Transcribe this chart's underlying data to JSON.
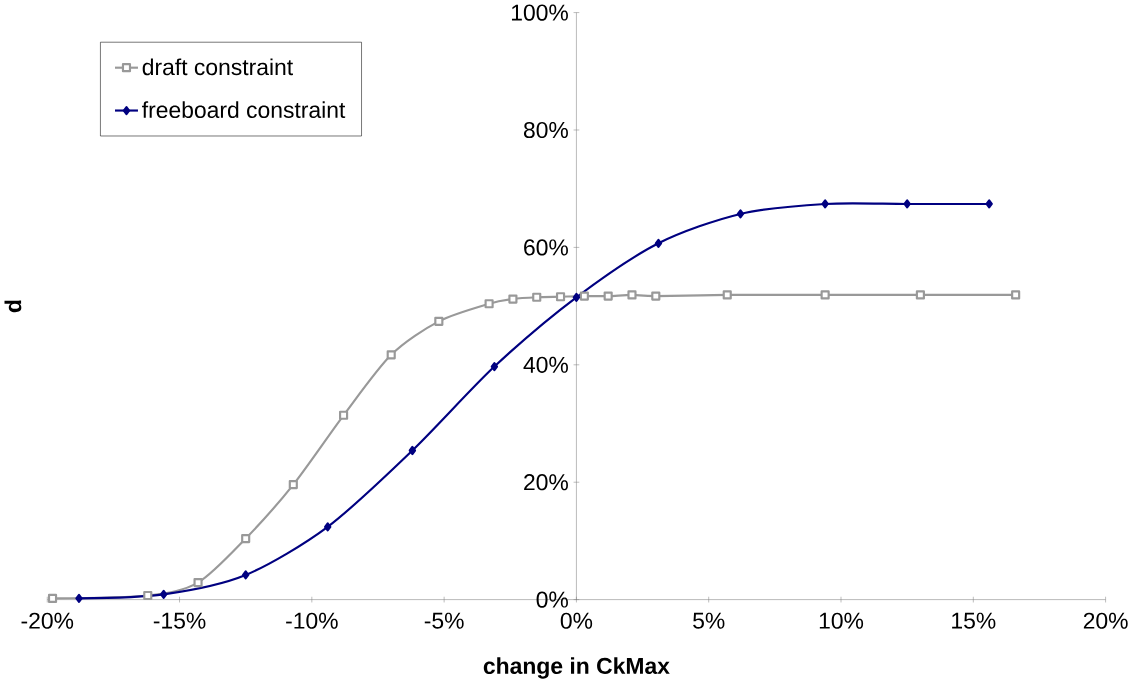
{
  "chart_data": {
    "type": "line",
    "xlabel": "change in CkMax",
    "ylabel": "d",
    "xlim": [
      -20,
      20
    ],
    "ylim": [
      0,
      100
    ],
    "xticks": [
      {
        "value": -20,
        "label": "-20%"
      },
      {
        "value": -15,
        "label": "-15%"
      },
      {
        "value": -10,
        "label": "-10%"
      },
      {
        "value": -5,
        "label": "-5%"
      },
      {
        "value": 0,
        "label": "0%"
      },
      {
        "value": 5,
        "label": "5%"
      },
      {
        "value": 10,
        "label": "10%"
      },
      {
        "value": 15,
        "label": "15%"
      },
      {
        "value": 20,
        "label": "20%"
      }
    ],
    "yticks": [
      {
        "value": 0,
        "label": "0%"
      },
      {
        "value": 20,
        "label": "20%"
      },
      {
        "value": 40,
        "label": "40%"
      },
      {
        "value": 60,
        "label": "60%"
      },
      {
        "value": 80,
        "label": "80%"
      },
      {
        "value": 100,
        "label": "100%"
      }
    ],
    "grid": false,
    "legend": "top left",
    "line_style": "solid",
    "series": [
      {
        "name": "draft constraint",
        "color": "#999999",
        "marker": "square",
        "x": [
          -19.8,
          -16.2,
          -14.3,
          -12.5,
          -10.7,
          -8.8,
          -7.0,
          -5.2,
          -3.3,
          -2.4,
          -1.5,
          -0.6,
          0.3,
          1.2,
          2.1,
          3.0,
          5.7,
          9.4,
          13.0,
          16.6
        ],
        "values": [
          0.2,
          0.7,
          2.9,
          10.4,
          19.6,
          31.4,
          41.7,
          47.4,
          50.4,
          51.2,
          51.5,
          51.6,
          51.7,
          51.7,
          51.9,
          51.7,
          51.9,
          51.9,
          51.9,
          51.9
        ]
      },
      {
        "name": "freeboard constraint",
        "color": "#000080",
        "marker": "diamond",
        "x": [
          -18.8,
          -15.6,
          -12.5,
          -9.4,
          -6.2,
          -3.1,
          0,
          3.1,
          6.2,
          9.4,
          12.5,
          15.6
        ],
        "values": [
          0.2,
          0.9,
          4.2,
          12.4,
          25.4,
          39.7,
          51.5,
          60.7,
          65.7,
          67.4,
          67.4,
          67.4
        ]
      }
    ]
  }
}
